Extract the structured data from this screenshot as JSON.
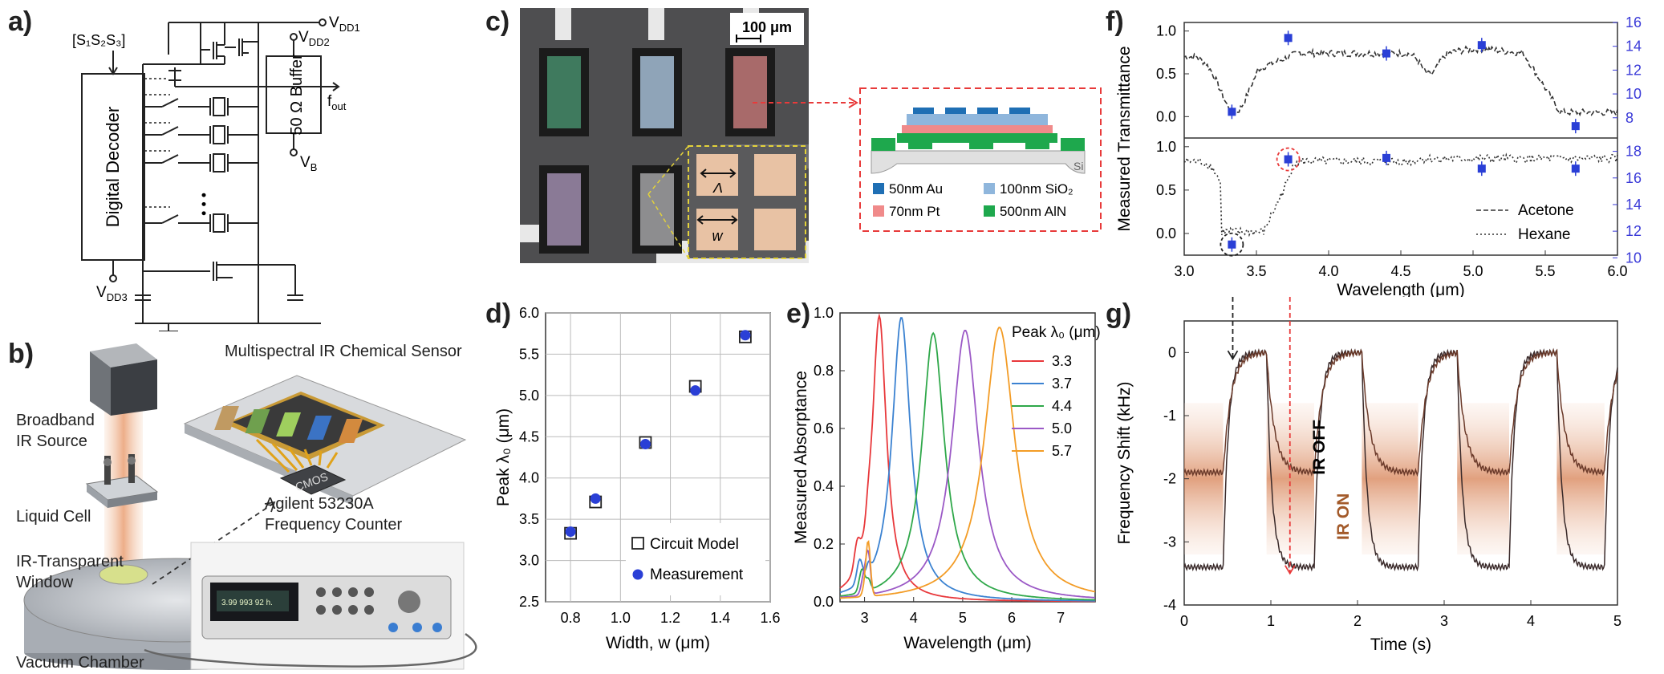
{
  "panels": {
    "a": {
      "label": "a)",
      "select_signal": "[S₁S₂S₃]",
      "decoder_label": "Digital Decoder",
      "buffer_label": "50 Ω Buffer",
      "vdd1": "V",
      "vdd1_sub": "DD1",
      "vdd2": "V",
      "vdd2_sub": "DD2",
      "vdd3": "V",
      "vdd3_sub": "DD3",
      "vb": "V",
      "vb_sub": "B",
      "fout": "f",
      "fout_sub": "out",
      "dots": "• • •"
    },
    "b": {
      "label": "b)",
      "sensor_title": "Multispectral IR Chemical Sensor",
      "source": [
        "Broadband",
        "IR Source"
      ],
      "cell": "Liquid Cell",
      "window": [
        "IR-Transparent",
        "Window"
      ],
      "counter": [
        "Agilent 53230A",
        "Frequency Counter"
      ],
      "chamber": "Vacuum Chamber",
      "chip": "CMOS",
      "display": "3.99 993 92 h."
    },
    "c": {
      "label": "c)",
      "scalebar": "100 μm",
      "lambda": "Λ",
      "w": "w",
      "si": "Si",
      "legend": [
        {
          "text": "50nm Au",
          "color": "#1f6fb4"
        },
        {
          "text": "100nm SiO₂",
          "color": "#8fb6dc"
        },
        {
          "text": "70nm Pt",
          "color": "#f08a8a"
        },
        {
          "text": "500nm AlN",
          "color": "#1ea84d"
        }
      ]
    },
    "d": {
      "label": "d)"
    },
    "e": {
      "label": "e)"
    },
    "f": {
      "label": "f)"
    },
    "g": {
      "label": "g)"
    }
  },
  "chart_data": [
    {
      "id": "d",
      "type": "scatter",
      "xlabel": "Width, w (μm)",
      "ylabel": "Peak λ₀ (μm)",
      "xlim": [
        0.7,
        1.6
      ],
      "ylim": [
        2.5,
        6.0
      ],
      "xticks": [
        "0.8",
        "1.0",
        "1.2",
        "1.4",
        "1.6"
      ],
      "yticks": [
        "2.5",
        "3.0",
        "3.5",
        "4.0",
        "4.5",
        "5.0",
        "5.5",
        "6.0"
      ],
      "grid": true,
      "legend_position": "bottom-right",
      "series": [
        {
          "name": "Circuit Model",
          "marker": "open-square",
          "x": [
            0.8,
            0.9,
            1.1,
            1.3,
            1.5
          ],
          "y": [
            3.33,
            3.71,
            4.43,
            5.11,
            5.71
          ]
        },
        {
          "name": "Measurement",
          "marker": "filled-circle",
          "color": "#2a3fd6",
          "x": [
            0.8,
            0.9,
            1.1,
            1.3,
            1.5
          ],
          "y": [
            3.35,
            3.75,
            4.41,
            5.06,
            5.73
          ]
        }
      ]
    },
    {
      "id": "e",
      "type": "line",
      "xlabel": "Wavelength (μm)",
      "ylabel": "Measured Absorptance",
      "xlim": [
        2.5,
        7.7
      ],
      "ylim": [
        0,
        1.0
      ],
      "xticks": [
        "3",
        "4",
        "5",
        "6",
        "7"
      ],
      "yticks": [
        "0.0",
        "0.2",
        "0.4",
        "0.6",
        "0.8",
        "1.0"
      ],
      "legend_title": "Peak λ₀ (μm)",
      "legend_position": "top-right",
      "series": [
        {
          "name": "3.3",
          "color": "#e8383b",
          "peak": 3.3,
          "height": 0.99
        },
        {
          "name": "3.7",
          "color": "#3b82d1",
          "peak": 3.75,
          "height": 0.985
        },
        {
          "name": "4.4",
          "color": "#2fa84a",
          "peak": 4.4,
          "height": 0.93
        },
        {
          "name": "5.0",
          "color": "#9b59c6",
          "peak": 5.05,
          "height": 0.94
        },
        {
          "name": "5.7",
          "color": "#f39c26",
          "peak": 5.75,
          "height": 0.95
        }
      ]
    },
    {
      "id": "f",
      "type": "line",
      "xlabel": "Wavelength (μm)",
      "ylabel": "Measured Transmittance",
      "xlim": [
        3.0,
        6.0
      ],
      "xticks": [
        "3.0",
        "3.5",
        "4.0",
        "4.5",
        "5.0",
        "5.5",
        "6.0"
      ],
      "legend_position": "bottom-right",
      "top": {
        "ylim": [
          -0.25,
          1.1
        ],
        "yticks": [
          "0.0",
          "0.5",
          "1.0"
        ],
        "right_ylim": [
          6.3,
          16
        ],
        "right_yticks": [
          "8",
          "10",
          "12",
          "14",
          "16"
        ],
        "series_name": "Acetone",
        "markers_x": [
          3.33,
          3.72,
          4.4,
          5.06,
          5.71
        ],
        "markers_right_y": [
          8.5,
          14.7,
          13.4,
          14.1,
          7.3
        ]
      },
      "bottom": {
        "ylim": [
          -0.25,
          1.1
        ],
        "yticks": [
          "0.0",
          "0.5",
          "1.0"
        ],
        "right_ylim": [
          10.2,
          19
        ],
        "right_yticks": [
          "10",
          "12",
          "14",
          "16",
          "18"
        ],
        "series_name": "Hexane",
        "markers_x": [
          3.33,
          3.72,
          4.4,
          5.06,
          5.71
        ],
        "markers_right_y": [
          11.0,
          17.4,
          17.5,
          16.7,
          16.7
        ]
      }
    },
    {
      "id": "g",
      "type": "line",
      "xlabel": "Time (s)",
      "ylabel": "Frequency Shift (kHz)",
      "xlim": [
        0,
        5
      ],
      "ylim": [
        -4,
        0.5
      ],
      "xticks": [
        "0",
        "1",
        "2",
        "3",
        "4",
        "5"
      ],
      "yticks": [
        "-4",
        "-3",
        "-2",
        "-1",
        "0"
      ],
      "annotations": [
        "IR OFF",
        "IR ON"
      ]
    }
  ]
}
